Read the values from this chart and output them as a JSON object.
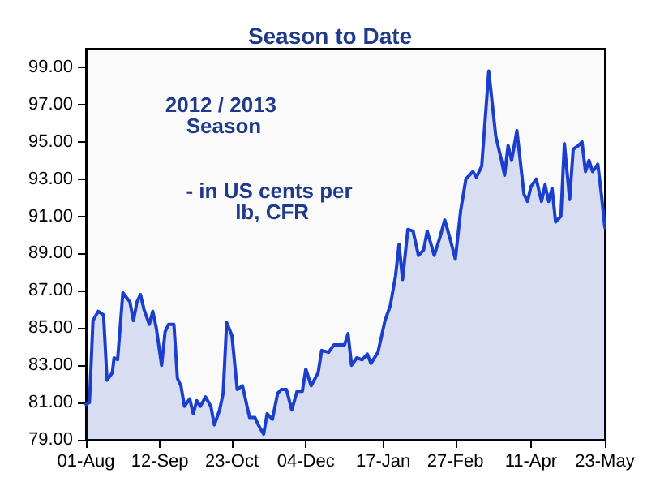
{
  "chart_data": {
    "type": "area",
    "title": "Season to Date",
    "annotations": [
      "2012 / 2013 Season",
      "- in US cents per lb, CFR"
    ],
    "x": [
      "2012-08-01",
      "2012-08-03",
      "2012-08-05",
      "2012-08-08",
      "2012-08-11",
      "2012-08-13",
      "2012-08-16",
      "2012-08-17",
      "2012-08-19",
      "2012-08-22",
      "2012-08-26",
      "2012-08-28",
      "2012-08-30",
      "2012-09-01",
      "2012-09-03",
      "2012-09-06",
      "2012-09-08",
      "2012-09-10",
      "2012-09-13",
      "2012-09-15",
      "2012-09-17",
      "2012-09-20",
      "2012-09-22",
      "2012-09-24",
      "2012-09-26",
      "2012-09-29",
      "2012-10-01",
      "2012-10-03",
      "2012-10-05",
      "2012-10-08",
      "2012-10-11",
      "2012-10-13",
      "2012-10-16",
      "2012-10-18",
      "2012-10-20",
      "2012-10-23",
      "2012-10-26",
      "2012-10-29",
      "2012-11-02",
      "2012-11-05",
      "2012-11-07",
      "2012-11-10",
      "2012-11-12",
      "2012-11-15",
      "2012-11-18",
      "2012-11-20",
      "2012-11-23",
      "2012-11-26",
      "2012-11-29",
      "2012-12-02",
      "2012-12-04",
      "2012-12-07",
      "2012-12-11",
      "2012-12-13",
      "2012-12-17",
      "2012-12-20",
      "2012-12-23",
      "2012-12-26",
      "2012-12-28",
      "2012-12-30",
      "2013-01-02",
      "2013-01-05",
      "2013-01-08",
      "2013-01-10",
      "2013-01-14",
      "2013-01-18",
      "2013-01-21",
      "2013-01-24",
      "2013-01-26",
      "2013-01-28",
      "2013-01-31",
      "2013-02-03",
      "2013-02-06",
      "2013-02-09",
      "2013-02-11",
      "2013-02-15",
      "2013-02-18",
      "2013-02-21",
      "2013-02-24",
      "2013-02-27",
      "2013-03-02",
      "2013-03-05",
      "2013-03-09",
      "2013-03-11",
      "2013-03-14",
      "2013-03-18",
      "2013-03-22",
      "2013-03-25",
      "2013-03-27",
      "2013-03-29",
      "2013-03-31",
      "2013-04-03",
      "2013-04-07",
      "2013-04-09",
      "2013-04-11",
      "2013-04-14",
      "2013-04-17",
      "2013-04-19",
      "2013-04-21",
      "2013-04-23",
      "2013-04-25",
      "2013-04-28",
      "2013-04-30",
      "2013-05-03",
      "2013-05-05",
      "2013-05-08",
      "2013-05-10",
      "2013-05-12",
      "2013-05-14",
      "2013-05-16",
      "2013-05-19",
      "2013-05-21",
      "2013-05-23"
    ],
    "series": [
      {
        "color": "#1a3fcc",
        "values": [
          80.9,
          81.0,
          85.4,
          85.9,
          85.7,
          82.2,
          82.6,
          83.4,
          83.3,
          86.9,
          86.4,
          85.4,
          86.4,
          86.8,
          86.0,
          85.2,
          85.9,
          85.0,
          83.0,
          84.8,
          85.2,
          85.2,
          82.3,
          81.9,
          80.8,
          81.2,
          80.4,
          81.1,
          80.8,
          81.3,
          80.8,
          79.8,
          80.6,
          81.5,
          85.3,
          84.6,
          81.7,
          81.9,
          80.2,
          80.2,
          79.8,
          79.3,
          80.4,
          80.1,
          81.5,
          81.7,
          81.7,
          80.6,
          81.6,
          81.6,
          82.8,
          81.9,
          82.6,
          83.8,
          83.7,
          84.1,
          84.1,
          84.1,
          84.7,
          83.0,
          83.4,
          83.3,
          83.6,
          83.1,
          83.7,
          85.4,
          86.2,
          87.8,
          89.5,
          87.6,
          90.3,
          90.2,
          88.9,
          89.2,
          90.2,
          88.9,
          89.8,
          90.8,
          89.8,
          88.7,
          91.3,
          93.0,
          93.4,
          93.1,
          93.7,
          98.8,
          95.3,
          94.1,
          93.2,
          94.8,
          94.0,
          95.6,
          92.2,
          91.8,
          92.6,
          93.0,
          91.8,
          92.7,
          91.8,
          92.5,
          90.7,
          91.0,
          94.9,
          91.9,
          94.6,
          94.8,
          95.0,
          93.4,
          94.0,
          93.4,
          93.8,
          92.2,
          90.4
        ]
      }
    ],
    "xlim": [
      "2012-08-01",
      "2013-05-23"
    ],
    "xticks": [
      {
        "value": "2012-08-01",
        "label": "01-Aug"
      },
      {
        "value": "2012-09-12",
        "label": "12-Sep"
      },
      {
        "value": "2012-10-23",
        "label": "23-Oct"
      },
      {
        "value": "2012-12-04",
        "label": "04-Dec"
      },
      {
        "value": "2013-01-17",
        "label": "17-Jan"
      },
      {
        "value": "2013-02-27",
        "label": "27-Feb"
      },
      {
        "value": "2013-04-11",
        "label": "11-Apr"
      },
      {
        "value": "2013-05-23",
        "label": "23-May"
      }
    ],
    "ylim": [
      79,
      100
    ],
    "yticks": [
      {
        "value": 79,
        "label": "79.00"
      },
      {
        "value": 81,
        "label": "81.00"
      },
      {
        "value": 83,
        "label": "83.00"
      },
      {
        "value": 85,
        "label": "85.00"
      },
      {
        "value": 87,
        "label": "87.00"
      },
      {
        "value": 89,
        "label": "89.00"
      },
      {
        "value": 91,
        "label": "91.00"
      },
      {
        "value": 93,
        "label": "93.00"
      },
      {
        "value": 95,
        "label": "95.00"
      },
      {
        "value": 97,
        "label": "97.00"
      },
      {
        "value": 99,
        "label": "99.00"
      }
    ],
    "grid": false,
    "marker": "none",
    "line_style": "solid"
  }
}
